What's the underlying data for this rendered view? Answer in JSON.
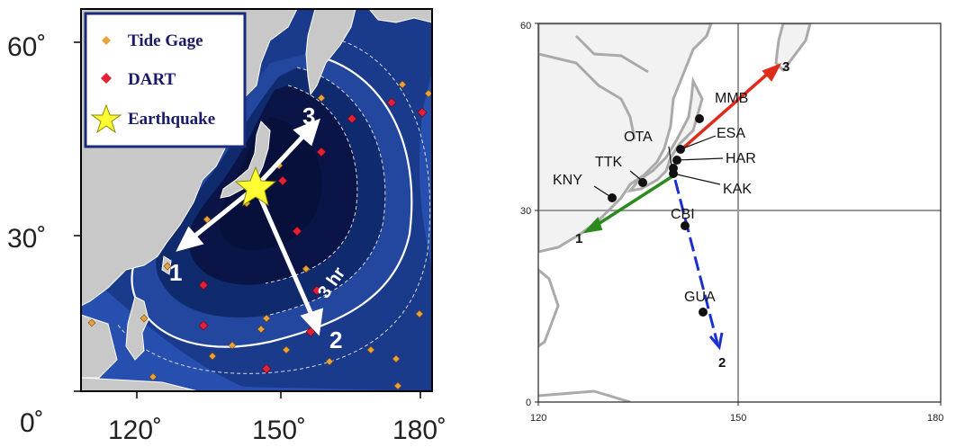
{
  "left_map": {
    "y_axis_ticks": [
      "60˚",
      "30˚",
      "0˚"
    ],
    "x_axis_ticks": [
      "120˚",
      "150˚",
      "180˚"
    ],
    "legend": {
      "items": [
        {
          "label": "Tide Gage",
          "color": "#e8a23a",
          "icon": "diamond-icon"
        },
        {
          "label": "DART",
          "color": "#e0213a",
          "icon": "diamond-icon"
        },
        {
          "label": "Earthquake",
          "color": "#ffff33",
          "icon": "star-icon"
        }
      ]
    },
    "contour_label": "3 hr",
    "arrow_labels": [
      "1",
      "2",
      "3"
    ],
    "colors": {
      "ocean_dark": "#0a1446",
      "ocean_mid": "#1a3a8c",
      "ocean_light": "#2e5ec8",
      "land": "#c8c8c8",
      "tide_gage": "#e8a23a",
      "dart": "#e0213a",
      "earthquake": "#ffff33"
    }
  },
  "right_map": {
    "y_axis_ticks": [
      "60",
      "30",
      "0"
    ],
    "x_axis_ticks": [
      "120",
      "150",
      "180"
    ],
    "stations": [
      "MMB",
      "ESA",
      "OTA",
      "HAR",
      "TTK",
      "KNY",
      "KAK",
      "CBI",
      "GUA"
    ],
    "arrow_labels": [
      "1",
      "2",
      "3"
    ],
    "colors": {
      "arrow_1": "#2a8a1e",
      "arrow_2": "#1a2fd0",
      "arrow_3": "#e02a1a",
      "grid": "#999999",
      "coast": "#aaaaaa"
    }
  }
}
